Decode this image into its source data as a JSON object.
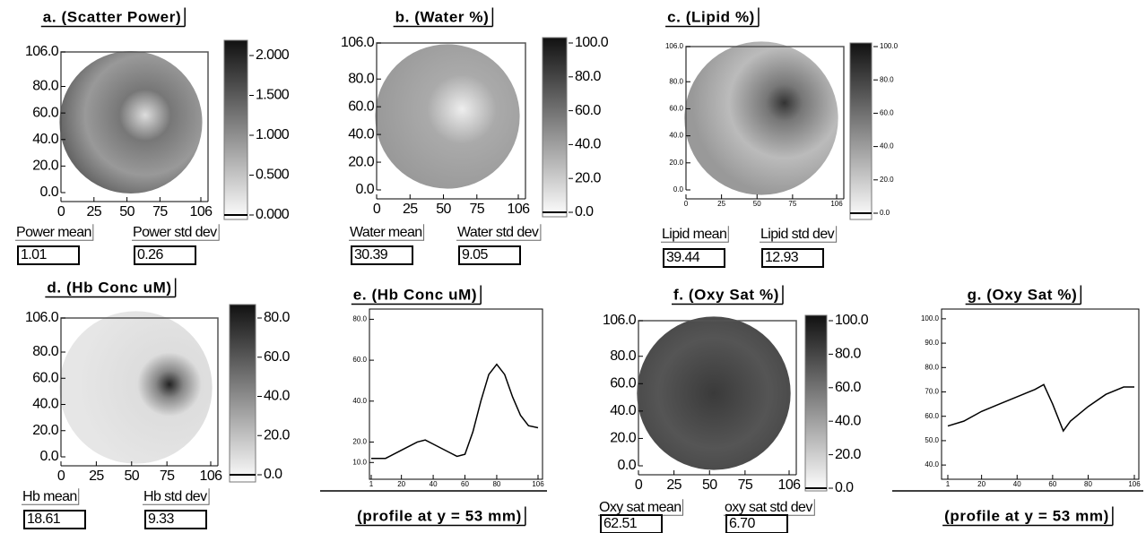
{
  "panels": [
    {
      "kind": "image",
      "title": "a. (Scatter Power)",
      "xlim": [
        0,
        106
      ],
      "ylim": [
        0,
        106
      ],
      "xticks": [
        0,
        25,
        50,
        75,
        106
      ],
      "yticks": [
        {
          "value": 106,
          "label": "106.0"
        },
        {
          "value": 80,
          "label": "80.0"
        },
        {
          "value": 60,
          "label": "60.0"
        },
        {
          "value": 40,
          "label": "40.0"
        },
        {
          "value": 20,
          "label": "20.0"
        },
        {
          "value": 0,
          "label": "0.0"
        }
      ],
      "clim": [
        0,
        2
      ],
      "colorbar_ticks": [
        {
          "value": 2,
          "label": "2.000"
        },
        {
          "value": 1.5,
          "label": "1.500"
        },
        {
          "value": 1,
          "label": "1.000"
        },
        {
          "value": 0.5,
          "label": "0.500"
        },
        {
          "value": 0,
          "label": "0.000"
        }
      ],
      "stats": [
        {
          "label": "Power mean",
          "value": "1.01"
        },
        {
          "label": "Power std dev",
          "value": "0.26"
        }
      ]
    },
    {
      "kind": "image",
      "title": "b. (Water %)",
      "xlim": [
        0,
        106
      ],
      "ylim": [
        0,
        106
      ],
      "xticks": [
        0,
        25,
        50,
        75,
        106
      ],
      "yticks": [
        {
          "value": 106,
          "label": "106.0"
        },
        {
          "value": 80,
          "label": "80.0"
        },
        {
          "value": 60,
          "label": "60.0"
        },
        {
          "value": 40,
          "label": "40.0"
        },
        {
          "value": 20,
          "label": "20.0"
        },
        {
          "value": 0,
          "label": "0.0"
        }
      ],
      "clim": [
        0,
        100
      ],
      "colorbar_ticks": [
        {
          "value": 100,
          "label": "100.0"
        },
        {
          "value": 80,
          "label": "80.0"
        },
        {
          "value": 60,
          "label": "60.0"
        },
        {
          "value": 40,
          "label": "40.0"
        },
        {
          "value": 20,
          "label": "20.0"
        },
        {
          "value": 0,
          "label": "0.0"
        }
      ],
      "stats": [
        {
          "label": "Water mean",
          "value": "30.39"
        },
        {
          "label": "Water std dev",
          "value": "9.05"
        }
      ]
    },
    {
      "kind": "image",
      "title": "c. (Lipid %)",
      "xlim": [
        0,
        106
      ],
      "ylim": [
        0,
        106
      ],
      "xticks": [
        0,
        25,
        50,
        75,
        106
      ],
      "yticks": [
        {
          "value": 106,
          "label": "106.0"
        },
        {
          "value": 80,
          "label": "80.0"
        },
        {
          "value": 60,
          "label": "60.0"
        },
        {
          "value": 40,
          "label": "40.0"
        },
        {
          "value": 20,
          "label": "20.0"
        },
        {
          "value": 0,
          "label": "0.0"
        }
      ],
      "clim": [
        0,
        100
      ],
      "colorbar_ticks": [
        {
          "value": 100,
          "label": "100.0"
        },
        {
          "value": 80,
          "label": "80.0"
        },
        {
          "value": 60,
          "label": "60.0"
        },
        {
          "value": 40,
          "label": "40.0"
        },
        {
          "value": 20,
          "label": "20.0"
        },
        {
          "value": 0,
          "label": "0.0"
        }
      ],
      "stats": [
        {
          "label": "Lipid mean",
          "value": "39.44"
        },
        {
          "label": "Lipid std dev",
          "value": "12.93"
        }
      ]
    },
    {
      "kind": "image",
      "title": "d. (Hb Conc uM)",
      "xlim": [
        0,
        106
      ],
      "ylim": [
        0,
        106
      ],
      "xticks": [
        0,
        25,
        50,
        75,
        106
      ],
      "yticks": [
        {
          "value": 106,
          "label": "106.0"
        },
        {
          "value": 80,
          "label": "80.0"
        },
        {
          "value": 60,
          "label": "60.0"
        },
        {
          "value": 40,
          "label": "40.0"
        },
        {
          "value": 20,
          "label": "20.0"
        },
        {
          "value": 0,
          "label": "0.0"
        }
      ],
      "clim": [
        0,
        80
      ],
      "colorbar_ticks": [
        {
          "value": 80,
          "label": "80.0"
        },
        {
          "value": 60,
          "label": "60.0"
        },
        {
          "value": 40,
          "label": "40.0"
        },
        {
          "value": 20,
          "label": "20.0"
        },
        {
          "value": 0,
          "label": "0.0"
        }
      ],
      "stats": [
        {
          "label": "Hb mean",
          "value": "18.61"
        },
        {
          "label": "Hb std dev",
          "value": "9.33"
        }
      ]
    },
    {
      "kind": "profile",
      "title": "e. (Hb Conc uM)",
      "xlim": [
        1,
        106
      ],
      "ylim": [
        4,
        85
      ],
      "x": [
        1,
        10,
        20,
        30,
        35,
        40,
        50,
        55,
        60,
        65,
        70,
        75,
        80,
        85,
        90,
        95,
        100,
        106
      ],
      "values": [
        12,
        12,
        16,
        20,
        21,
        19,
        15,
        13,
        14,
        25,
        40,
        53,
        58,
        53,
        42,
        33,
        28,
        27
      ],
      "xticks": [
        1,
        20,
        40,
        60,
        80,
        106
      ],
      "yticks": [
        {
          "value": 80,
          "label": "80.0"
        },
        {
          "value": 60,
          "label": "60.0"
        },
        {
          "value": 40,
          "label": "40.0"
        },
        {
          "value": 20,
          "label": "20.0"
        },
        {
          "value": 10,
          "label": "10.0"
        }
      ],
      "caption": "(profile at y = 53 mm)"
    },
    {
      "kind": "image",
      "title": "f. (Oxy Sat %)",
      "xlim": [
        0,
        106
      ],
      "ylim": [
        0,
        106
      ],
      "xticks": [
        0,
        25,
        50,
        75,
        106
      ],
      "yticks": [
        {
          "value": 106,
          "label": "106.0"
        },
        {
          "value": 80,
          "label": "80.0"
        },
        {
          "value": 60,
          "label": "60.0"
        },
        {
          "value": 40,
          "label": "40.0"
        },
        {
          "value": 20,
          "label": "20.0"
        },
        {
          "value": 0,
          "label": "0.0"
        }
      ],
      "clim": [
        0,
        100
      ],
      "colorbar_ticks": [
        {
          "value": 100,
          "label": "100.0"
        },
        {
          "value": 80,
          "label": "80.0"
        },
        {
          "value": 60,
          "label": "60.0"
        },
        {
          "value": 40,
          "label": "40.0"
        },
        {
          "value": 20,
          "label": "20.0"
        },
        {
          "value": 0,
          "label": "0.0"
        }
      ],
      "stats": [
        {
          "label": "Oxy sat mean",
          "value": "62.51"
        },
        {
          "label": "oxy sat std dev",
          "value": "6.70"
        }
      ]
    },
    {
      "kind": "profile",
      "title": "g. (Oxy Sat %)",
      "xlim": [
        1,
        106
      ],
      "ylim": [
        36,
        104
      ],
      "x": [
        1,
        10,
        20,
        30,
        40,
        50,
        55,
        60,
        66,
        70,
        80,
        90,
        100,
        106
      ],
      "values": [
        56,
        58,
        62,
        65,
        68,
        71,
        73,
        65,
        54,
        58,
        64,
        69,
        72,
        72
      ],
      "xticks": [
        1,
        20,
        40,
        60,
        80,
        106
      ],
      "yticks": [
        {
          "value": 100,
          "label": "100.0"
        },
        {
          "value": 90,
          "label": "90.0"
        },
        {
          "value": 80,
          "label": "80.0"
        },
        {
          "value": 70,
          "label": "70.0"
        },
        {
          "value": 60,
          "label": "60.0"
        },
        {
          "value": 50,
          "label": "50.0"
        },
        {
          "value": 40,
          "label": "40.0"
        }
      ],
      "caption": "(profile at y = 53 mm)"
    }
  ]
}
